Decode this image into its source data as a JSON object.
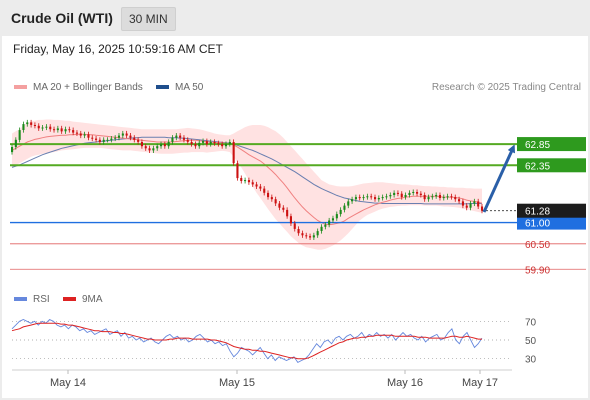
{
  "header": {
    "instrument": "Crude Oil (WTI)",
    "timeframe": "30 MIN",
    "datetime": "Friday, May 16, 2025 10:59:16 AM CET"
  },
  "legend": {
    "ma20_bb": "MA 20 + Bollinger Bands",
    "ma50": "MA 50",
    "credit": "Research © 2025 Trading Central",
    "rsi": "RSI",
    "rsi_ma": "9MA"
  },
  "colors": {
    "candle_up": "#1a8a1a",
    "candle_down": "#cc1111",
    "bollinger_fill": "#ffd8d8",
    "ma20": "#f08080",
    "ma50": "#6a7fb0",
    "resistance": "#55aa22",
    "pivot": "#1f6fe0",
    "support": "#e06060",
    "forecast_arrow": "#2a5fa8",
    "rsi": "#6688dd",
    "rsi_ma": "#dd2222"
  },
  "chart_data": [
    {
      "type": "candlestick",
      "title": "Crude Oil (WTI)",
      "interval": "30 MIN",
      "x_ticks": [
        "May 14",
        "May 15",
        "May 16",
        "May 17"
      ],
      "ylim": [
        59.6,
        63.7
      ],
      "current_price": 61.28,
      "levels": [
        {
          "role": "resistance",
          "value": 62.85,
          "label": "62.85"
        },
        {
          "role": "resistance",
          "value": 62.35,
          "label": "62.35"
        },
        {
          "role": "pivot",
          "value": 61.0,
          "label": "61.00"
        },
        {
          "role": "support",
          "value": 60.5,
          "label": "60.50"
        },
        {
          "role": "support",
          "value": 59.9,
          "label": "59.90"
        }
      ],
      "current_label": "61.28",
      "forecast": {
        "direction": "up",
        "from": 61.25,
        "to": 62.85
      },
      "close": [
        62.78,
        62.95,
        63.18,
        63.32,
        63.36,
        63.3,
        63.28,
        63.22,
        63.24,
        63.26,
        63.2,
        63.18,
        63.22,
        63.15,
        63.2,
        63.18,
        63.12,
        63.1,
        63.05,
        63.08,
        63.0,
        62.98,
        62.95,
        62.9,
        62.95,
        62.95,
        62.98,
        63.0,
        63.05,
        63.1,
        63.05,
        63.0,
        62.95,
        62.9,
        62.8,
        62.75,
        62.7,
        62.75,
        62.8,
        62.85,
        62.8,
        62.9,
        63.0,
        63.05,
        63.0,
        62.95,
        62.9,
        62.85,
        62.8,
        62.88,
        62.92,
        62.85,
        62.9,
        62.87,
        62.85,
        62.8,
        62.85,
        62.9,
        62.4,
        62.05,
        61.98,
        62.0,
        61.95,
        61.9,
        61.85,
        61.8,
        61.7,
        61.6,
        61.55,
        61.45,
        61.35,
        61.3,
        61.15,
        60.98,
        60.85,
        60.75,
        60.7,
        60.68,
        60.65,
        60.7,
        60.8,
        60.9,
        60.95,
        61.05,
        61.1,
        61.2,
        61.3,
        61.4,
        61.5,
        61.55,
        61.6,
        61.58,
        61.6,
        61.62,
        61.6,
        61.55,
        61.58,
        61.6,
        61.62,
        61.65,
        61.7,
        61.68,
        61.6,
        61.65,
        61.7,
        61.72,
        61.68,
        61.65,
        61.55,
        61.6,
        61.62,
        61.65,
        61.58,
        61.6,
        61.62,
        61.6,
        61.55,
        61.5,
        61.4,
        61.35,
        61.45,
        61.5,
        61.38,
        61.28
      ],
      "ma20": [
        62.7,
        62.75,
        62.8,
        62.85,
        62.9,
        62.93,
        62.96,
        62.98,
        63.0,
        63.02,
        63.03,
        63.04,
        63.05,
        63.06,
        63.06,
        63.07,
        63.07,
        63.08,
        63.08,
        63.08,
        63.07,
        63.07,
        63.06,
        63.05,
        63.04,
        63.03,
        63.02,
        63.01,
        63.0,
        62.99,
        62.98,
        62.97,
        62.96,
        62.95,
        62.94,
        62.93,
        62.92,
        62.91,
        62.9,
        62.9,
        62.9,
        62.9,
        62.9,
        62.91,
        62.92,
        62.93,
        62.94,
        62.94,
        62.94,
        62.93,
        62.92,
        62.9,
        62.9,
        62.89,
        62.88,
        62.88,
        62.87,
        62.86,
        62.83,
        62.78,
        62.72,
        62.66,
        62.6,
        62.55,
        62.5,
        62.45,
        62.38,
        62.3,
        62.22,
        62.13,
        62.03,
        61.93,
        61.82,
        61.7,
        61.58,
        61.47,
        61.37,
        61.28,
        61.2,
        61.12,
        61.05,
        61.0,
        60.96,
        60.95,
        60.96,
        60.98,
        61.0,
        61.04,
        61.1,
        61.15,
        61.2,
        61.25,
        61.3,
        61.34,
        61.38,
        61.42,
        61.45,
        61.48,
        61.5,
        61.53,
        61.55,
        61.57,
        61.58,
        61.6,
        61.61,
        61.62,
        61.62,
        61.62,
        61.62,
        61.62,
        61.62,
        61.62,
        61.61,
        61.6,
        61.6,
        61.6,
        61.59,
        61.58,
        61.56,
        61.53,
        61.51,
        61.5,
        61.48,
        61.46
      ],
      "bb_upper": [
        63.1,
        63.15,
        63.2,
        63.3,
        63.35,
        63.38,
        63.4,
        63.42,
        63.42,
        63.43,
        63.43,
        63.42,
        63.42,
        63.41,
        63.4,
        63.4,
        63.38,
        63.37,
        63.36,
        63.35,
        63.34,
        63.33,
        63.32,
        63.31,
        63.3,
        63.29,
        63.28,
        63.27,
        63.26,
        63.25,
        63.24,
        63.23,
        63.22,
        63.21,
        63.2,
        63.2,
        63.2,
        63.2,
        63.2,
        63.2,
        63.2,
        63.2,
        63.2,
        63.2,
        63.21,
        63.22,
        63.23,
        63.22,
        63.21,
        63.2,
        63.18,
        63.15,
        63.13,
        63.1,
        63.08,
        63.07,
        63.06,
        63.06,
        63.1,
        63.15,
        63.2,
        63.25,
        63.28,
        63.3,
        63.3,
        63.3,
        63.28,
        63.25,
        63.2,
        63.15,
        63.08,
        63.0,
        62.9,
        62.8,
        62.7,
        62.6,
        62.5,
        62.4,
        62.3,
        62.2,
        62.1,
        62.0,
        61.95,
        61.9,
        61.88,
        61.86,
        61.85,
        61.85,
        61.85,
        61.86,
        61.88,
        61.9,
        61.92,
        61.93,
        61.94,
        61.95,
        61.95,
        61.95,
        61.94,
        61.93,
        61.92,
        61.91,
        61.9,
        61.9,
        61.89,
        61.88,
        61.88,
        61.87,
        61.86,
        61.86,
        61.85,
        61.85,
        61.84,
        61.84,
        61.83,
        61.83,
        61.82,
        61.82,
        61.82,
        61.81,
        61.81,
        61.8,
        61.8,
        61.8
      ],
      "bb_lower": [
        62.3,
        62.35,
        62.4,
        62.45,
        62.5,
        62.55,
        62.58,
        62.6,
        62.62,
        62.64,
        62.65,
        62.66,
        62.68,
        62.7,
        62.71,
        62.72,
        62.73,
        62.74,
        62.75,
        62.76,
        62.76,
        62.76,
        62.76,
        62.76,
        62.75,
        62.74,
        62.73,
        62.72,
        62.71,
        62.7,
        62.7,
        62.7,
        62.69,
        62.68,
        62.67,
        62.66,
        62.65,
        62.64,
        62.63,
        62.62,
        62.62,
        62.62,
        62.62,
        62.63,
        62.64,
        62.65,
        62.65,
        62.66,
        62.66,
        62.66,
        62.66,
        62.65,
        62.66,
        62.67,
        62.68,
        62.69,
        62.68,
        62.66,
        62.55,
        62.42,
        62.3,
        62.15,
        62.0,
        61.85,
        61.7,
        61.58,
        61.45,
        61.32,
        61.2,
        61.08,
        60.98,
        60.88,
        60.78,
        60.68,
        60.6,
        60.52,
        60.46,
        60.42,
        60.4,
        60.38,
        60.36,
        60.36,
        60.38,
        60.42,
        60.46,
        60.52,
        60.58,
        60.66,
        60.75,
        60.85,
        60.95,
        61.05,
        61.12,
        61.18,
        61.22,
        61.26,
        61.3,
        61.33,
        61.35,
        61.37,
        61.38,
        61.39,
        61.4,
        61.4,
        61.41,
        61.41,
        61.41,
        61.41,
        61.4,
        61.4,
        61.4,
        61.4,
        61.39,
        61.38,
        61.38,
        61.37,
        61.36,
        61.35,
        61.33,
        61.31,
        61.29,
        61.27,
        61.25,
        61.23
      ],
      "ma50": [
        62.3,
        62.33,
        62.36,
        62.4,
        62.44,
        62.48,
        62.52,
        62.56,
        62.6,
        62.63,
        62.66,
        62.69,
        62.72,
        62.75,
        62.77,
        62.79,
        62.81,
        62.83,
        62.85,
        62.87,
        62.88,
        62.89,
        62.9,
        62.91,
        62.92,
        62.93,
        62.94,
        62.95,
        62.96,
        62.97,
        62.98,
        62.99,
        63.0,
        63.0,
        63.01,
        63.01,
        63.01,
        63.01,
        63.01,
        63.01,
        63.01,
        63.0,
        63.0,
        63.0,
        62.99,
        62.99,
        62.98,
        62.97,
        62.96,
        62.95,
        62.94,
        62.93,
        62.92,
        62.91,
        62.9,
        62.89,
        62.88,
        62.87,
        62.85,
        62.82,
        62.79,
        62.76,
        62.73,
        62.7,
        62.66,
        62.62,
        62.58,
        62.54,
        62.5,
        62.45,
        62.4,
        62.35,
        62.3,
        62.25,
        62.2,
        62.14,
        62.08,
        62.02,
        61.96,
        61.9,
        61.85,
        61.8,
        61.76,
        61.72,
        61.68,
        61.64,
        61.61,
        61.58,
        61.56,
        61.54,
        61.52,
        61.5,
        61.49,
        61.48,
        61.47,
        61.46,
        61.46,
        61.45,
        61.45,
        61.45,
        61.45,
        61.45,
        61.45,
        61.45,
        61.45,
        61.45,
        61.45,
        61.45,
        61.44,
        61.44,
        61.44,
        61.44,
        61.44,
        61.44,
        61.44,
        61.44,
        61.44,
        61.44,
        61.44,
        61.44,
        61.45,
        61.45,
        61.45,
        61.45
      ]
    },
    {
      "type": "line",
      "title": "RSI",
      "ylim": [
        20,
        80
      ],
      "y_ticks": [
        70,
        50,
        30
      ],
      "series": [
        {
          "name": "RSI",
          "values": [
            62,
            66,
            70,
            72,
            70,
            68,
            70,
            66,
            70,
            68,
            72,
            70,
            66,
            64,
            66,
            62,
            66,
            64,
            60,
            62,
            58,
            60,
            56,
            58,
            60,
            62,
            56,
            58,
            60,
            54,
            58,
            52,
            54,
            50,
            52,
            48,
            50,
            52,
            48,
            46,
            50,
            54,
            56,
            52,
            54,
            50,
            52,
            48,
            50,
            54,
            56,
            52,
            48,
            50,
            46,
            48,
            44,
            46,
            38,
            32,
            36,
            42,
            40,
            38,
            34,
            38,
            42,
            36,
            30,
            34,
            28,
            32,
            30,
            28,
            30,
            32,
            26,
            28,
            30,
            34,
            40,
            46,
            42,
            48,
            50,
            46,
            52,
            54,
            50,
            54,
            56,
            52,
            54,
            58,
            52,
            56,
            54,
            58,
            54,
            56,
            52,
            56,
            50,
            54,
            58,
            54,
            56,
            52,
            50,
            54,
            48,
            52,
            54,
            56,
            50,
            52,
            58,
            62,
            50,
            46,
            54,
            58,
            50,
            42,
            46,
            52
          ]
        },
        {
          "name": "9MA",
          "values": [
            60,
            61,
            62,
            64,
            65,
            66,
            67,
            68,
            68,
            68,
            68,
            68,
            68,
            67,
            67,
            66,
            66,
            65,
            64,
            63,
            62,
            61,
            60,
            60,
            59,
            59,
            59,
            58,
            58,
            57,
            57,
            56,
            55,
            54,
            53,
            52,
            51,
            51,
            50,
            50,
            50,
            50,
            51,
            51,
            52,
            52,
            52,
            52,
            51,
            51,
            51,
            51,
            51,
            50,
            50,
            49,
            48,
            47,
            45,
            43,
            42,
            41,
            40,
            40,
            39,
            39,
            38,
            38,
            37,
            36,
            35,
            34,
            33,
            32,
            31,
            31,
            30,
            30,
            30,
            31,
            33,
            35,
            37,
            39,
            41,
            43,
            45,
            47,
            48,
            50,
            51,
            52,
            52,
            53,
            53,
            54,
            54,
            55,
            55,
            55,
            55,
            55,
            54,
            54,
            54,
            54,
            54,
            54,
            53,
            53,
            53,
            52,
            52,
            52,
            52,
            52,
            53,
            54,
            54,
            53,
            53,
            54,
            53,
            52,
            51,
            51
          ]
        }
      ]
    }
  ]
}
